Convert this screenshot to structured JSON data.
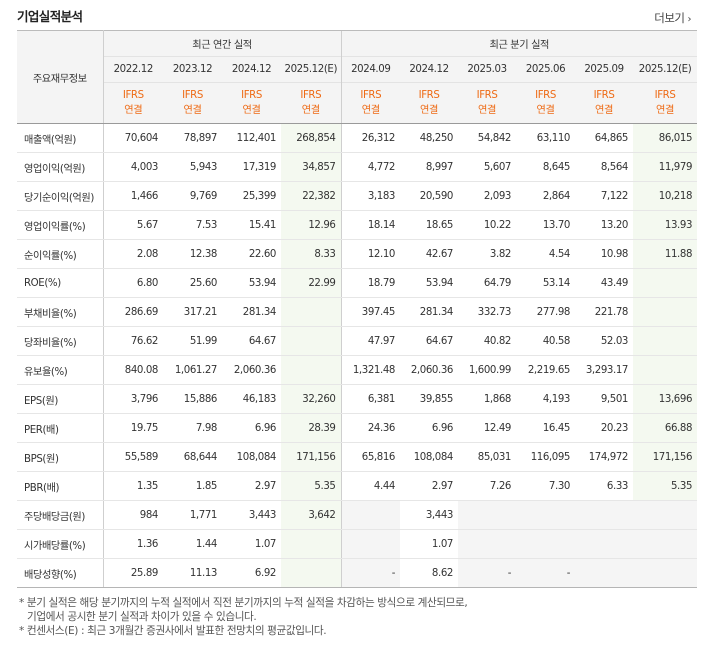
{
  "title": "기업실적분석",
  "more_label": "더보기",
  "more_icon": "chevron-right-icon",
  "header": {
    "corner": "주요재무정보",
    "annual_group": "최근 연간 실적",
    "quarter_group": "최근 분기 실적",
    "periods": [
      "2022.12",
      "2023.12",
      "2024.12",
      "2025.12(E)",
      "2024.09",
      "2024.12",
      "2025.03",
      "2025.06",
      "2025.09",
      "2025.12(E)"
    ],
    "basis_top": "IFRS",
    "basis_bottom": "연결"
  },
  "rows": [
    {
      "label": "매출액(억원)",
      "values": [
        "70,604",
        "78,897",
        "112,401",
        "268,854",
        "26,312",
        "48,250",
        "54,842",
        "63,110",
        "64,865",
        "86,015"
      ]
    },
    {
      "label": "영업이익(억원)",
      "values": [
        "4,003",
        "5,943",
        "17,319",
        "34,857",
        "4,772",
        "8,997",
        "5,607",
        "8,645",
        "8,564",
        "11,979"
      ]
    },
    {
      "label": "당기순이익(억원)",
      "values": [
        "1,466",
        "9,769",
        "25,399",
        "22,382",
        "3,183",
        "20,590",
        "2,093",
        "2,864",
        "7,122",
        "10,218"
      ]
    },
    {
      "label": "영업이익률(%)",
      "values": [
        "5.67",
        "7.53",
        "15.41",
        "12.96",
        "18.14",
        "18.65",
        "10.22",
        "13.70",
        "13.20",
        "13.93"
      ]
    },
    {
      "label": "순이익률(%)",
      "values": [
        "2.08",
        "12.38",
        "22.60",
        "8.33",
        "12.10",
        "42.67",
        "3.82",
        "4.54",
        "10.98",
        "11.88"
      ]
    },
    {
      "label": "ROE(%)",
      "values": [
        "6.80",
        "25.60",
        "53.94",
        "22.99",
        "18.79",
        "53.94",
        "64.79",
        "53.14",
        "43.49",
        ""
      ]
    },
    {
      "label": "부채비율(%)",
      "values": [
        "286.69",
        "317.21",
        "281.34",
        "",
        "397.45",
        "281.34",
        "332.73",
        "277.98",
        "221.78",
        ""
      ]
    },
    {
      "label": "당좌비율(%)",
      "values": [
        "76.62",
        "51.99",
        "64.67",
        "",
        "47.97",
        "64.67",
        "40.82",
        "40.58",
        "52.03",
        ""
      ]
    },
    {
      "label": "유보율(%)",
      "values": [
        "840.08",
        "1,061.27",
        "2,060.36",
        "",
        "1,321.48",
        "2,060.36",
        "1,600.99",
        "2,219.65",
        "3,293.17",
        ""
      ]
    },
    {
      "label": "EPS(원)",
      "values": [
        "3,796",
        "15,886",
        "46,183",
        "32,260",
        "6,381",
        "39,855",
        "1,868",
        "4,193",
        "9,501",
        "13,696"
      ]
    },
    {
      "label": "PER(배)",
      "values": [
        "19.75",
        "7.98",
        "6.96",
        "28.39",
        "24.36",
        "6.96",
        "12.49",
        "16.45",
        "20.23",
        "66.88"
      ]
    },
    {
      "label": "BPS(원)",
      "values": [
        "55,589",
        "68,644",
        "108,084",
        "171,156",
        "65,816",
        "108,084",
        "85,031",
        "116,095",
        "174,972",
        "171,156"
      ]
    },
    {
      "label": "PBR(배)",
      "values": [
        "1.35",
        "1.85",
        "2.97",
        "5.35",
        "4.44",
        "2.97",
        "7.26",
        "7.30",
        "6.33",
        "5.35"
      ]
    },
    {
      "label": "주당배당금(원)",
      "values": [
        "984",
        "1,771",
        "3,443",
        "3,642",
        "",
        "3,443",
        "",
        "",
        "",
        ""
      ]
    },
    {
      "label": "시가배당률(%)",
      "values": [
        "1.36",
        "1.44",
        "1.07",
        "",
        "",
        "1.07",
        "",
        "",
        "",
        ""
      ]
    },
    {
      "label": "배당성향(%)",
      "values": [
        "25.89",
        "11.13",
        "6.92",
        "",
        "-",
        "8.62",
        "-",
        "-",
        "",
        ""
      ]
    }
  ],
  "notes": {
    "line1": "* 분기 실적은 해당 분기까지의 누적 실적에서 직전 분기까지의 누적 실적을 차감하는 방식으로 계산되므로,",
    "line2": "기업에서 공시한 분기 실적과 차이가 있을 수 있습니다.",
    "line3": "* 컨센서스(E) : 최근 3개월간 증권사에서 발표한 전망치의 평균값입니다."
  }
}
